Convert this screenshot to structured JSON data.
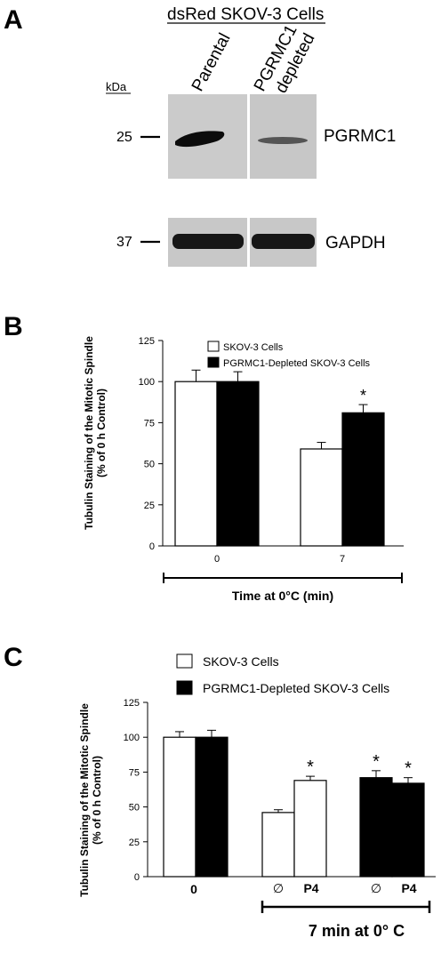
{
  "panel_a": {
    "letter": "A",
    "title": "dsRed SKOV-3 Cells",
    "lane_labels": [
      "Parental",
      "PGRMC1",
      "depleted"
    ],
    "kda_label": "kDa",
    "bands": [
      {
        "marker": "25",
        "protein": "PGRMC1"
      },
      {
        "marker": "37",
        "protein": "GAPDH"
      }
    ]
  },
  "chart_data": [
    {
      "type": "bar",
      "panel": "B",
      "ylabel": [
        "Tubulin Staining of the Mitotic Spindle",
        "(% of 0 h Control)"
      ],
      "xlabel": "Time at 0°C (min)",
      "ylim": [
        0,
        125
      ],
      "yticks": [
        "0",
        "25",
        "50",
        "75",
        "100",
        "125"
      ],
      "categories": [
        "0",
        "7"
      ],
      "legend_position": "top-left",
      "series": [
        {
          "name": "SKOV-3 Cells",
          "color": "#ffffff",
          "values": [
            100,
            59
          ],
          "errors": [
            7,
            4
          ]
        },
        {
          "name": "PGRMC1-Depleted SKOV-3 Cells",
          "color": "#000000",
          "values": [
            100,
            81
          ],
          "errors": [
            6,
            5
          ]
        }
      ],
      "annotations": [
        {
          "text": "*",
          "category": "7",
          "series": 1
        }
      ]
    },
    {
      "type": "bar",
      "panel": "C",
      "ylabel": [
        "Tubulin Staining of the Mitotic Spindle",
        "(% of 0 h Control)"
      ],
      "xlabel": "7 min at 0° C",
      "ylim": [
        0,
        125
      ],
      "yticks": [
        "0",
        "25",
        "50",
        "75",
        "100",
        "125"
      ],
      "group_labels": [
        "0",
        "∅",
        "P4",
        "∅",
        "P4"
      ],
      "legend_position": "top-left",
      "legend": [
        {
          "name": "SKOV-3 Cells",
          "color": "#ffffff"
        },
        {
          "name": "PGRMC1-Depleted SKOV-3 Cells",
          "color": "#000000"
        }
      ],
      "bars": [
        {
          "group": 0,
          "color": "#ffffff",
          "value": 100,
          "error": 4,
          "star": false
        },
        {
          "group": 0,
          "color": "#000000",
          "value": 100,
          "error": 5,
          "star": false
        },
        {
          "group": 1,
          "color": "#ffffff",
          "value": 46,
          "error": 2,
          "star": false
        },
        {
          "group": 2,
          "color": "#ffffff",
          "value": 69,
          "error": 3,
          "star": true
        },
        {
          "group": 3,
          "color": "#000000",
          "value": 71,
          "error": 5,
          "star": true
        },
        {
          "group": 4,
          "color": "#000000",
          "value": 67,
          "error": 4,
          "star": true
        }
      ],
      "star_text": "*"
    }
  ]
}
